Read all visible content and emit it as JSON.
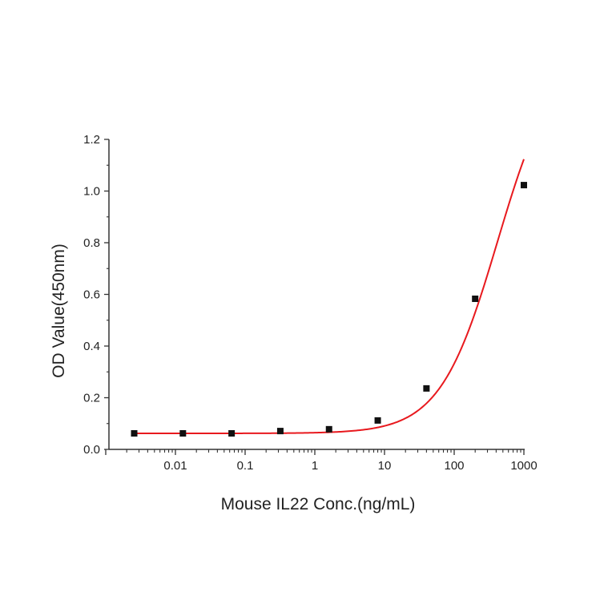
{
  "chart_data": {
    "type": "scatter",
    "title": "",
    "xlabel": "Mouse IL22 Conc.(ng/mL)",
    "ylabel": "OD Value(450nm)",
    "xscale": "log",
    "xlim": [
      0.001,
      1000
    ],
    "ylim": [
      0.0,
      1.2
    ],
    "x_ticks": [
      0.01,
      0.1,
      1,
      10,
      100,
      1000
    ],
    "x_tick_labels": [
      "0.01",
      "0.1",
      "1",
      "10",
      "100",
      "1000"
    ],
    "y_ticks": [
      0.0,
      0.2,
      0.4,
      0.6,
      0.8,
      1.0,
      1.2
    ],
    "y_tick_labels": [
      "0.0",
      "0.2",
      "0.4",
      "0.6",
      "0.8",
      "1.0",
      "1.2"
    ],
    "grid": false,
    "legend": null,
    "series": [
      {
        "name": "Mouse IL22",
        "marker": "square",
        "marker_color": "#111111",
        "line": "four-parameter logistic fit",
        "line_color": "#e8191e",
        "x": [
          0.00256,
          0.0128,
          0.064,
          0.32,
          1.6,
          8,
          40,
          200,
          1000
        ],
        "y": [
          0.062,
          0.062,
          0.062,
          0.071,
          0.078,
          0.112,
          0.236,
          0.583,
          1.023
        ]
      }
    ]
  }
}
